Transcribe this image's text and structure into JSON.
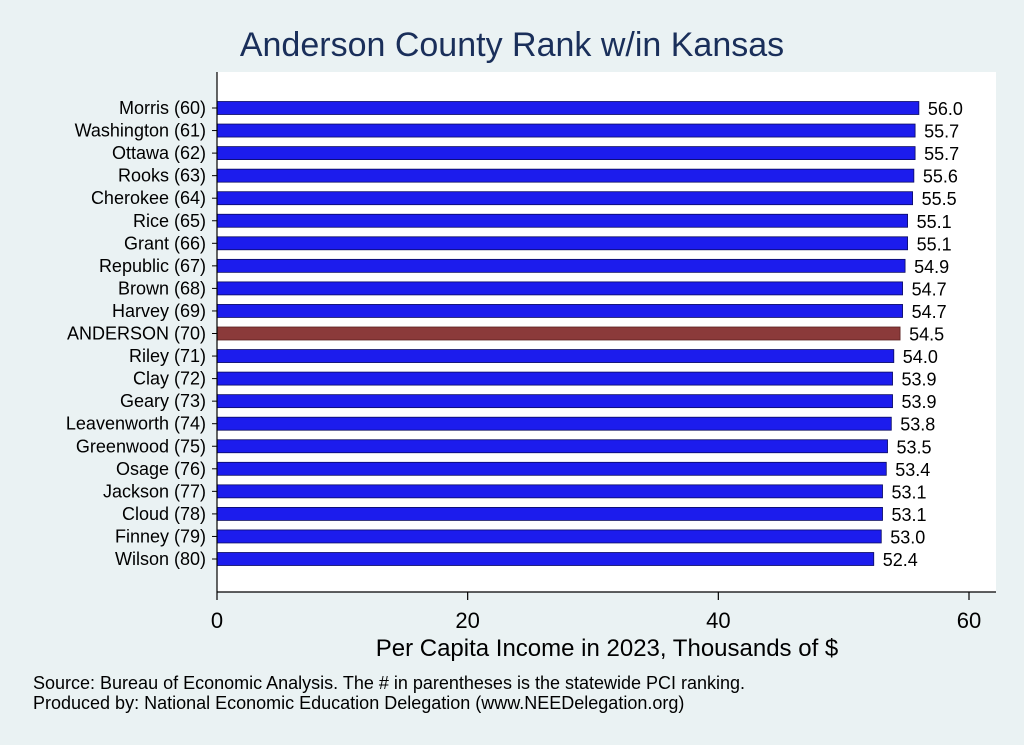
{
  "chart_data": {
    "type": "bar",
    "orientation": "horizontal",
    "title": "Anderson County Rank w/in Kansas",
    "xlabel": "Per Capita Income in 2023, Thousands of $",
    "ylabel": "",
    "xlim": [
      0,
      62
    ],
    "xticks": [
      0,
      20,
      40,
      60
    ],
    "grid": false,
    "categories": [
      "Morris (60)",
      "Washington (61)",
      "Ottawa (62)",
      "Rooks (63)",
      "Cherokee (64)",
      "Rice (65)",
      "Grant (66)",
      "Republic (67)",
      "Brown (68)",
      "Harvey (69)",
      "ANDERSON (70)",
      "Riley (71)",
      "Clay (72)",
      "Geary (73)",
      "Leavenworth (74)",
      "Greenwood (75)",
      "Osage (76)",
      "Jackson (77)",
      "Cloud (78)",
      "Finney (79)",
      "Wilson (80)"
    ],
    "values": [
      56.0,
      55.7,
      55.7,
      55.6,
      55.5,
      55.1,
      55.1,
      54.9,
      54.7,
      54.7,
      54.5,
      54.0,
      53.9,
      53.9,
      53.8,
      53.5,
      53.4,
      53.1,
      53.1,
      53.0,
      52.4
    ],
    "value_labels": [
      "56.0",
      "55.7",
      "55.7",
      "55.6",
      "55.5",
      "55.1",
      "55.1",
      "54.9",
      "54.7",
      "54.7",
      "54.5",
      "54.0",
      "53.9",
      "53.9",
      "53.8",
      "53.5",
      "53.4",
      "53.1",
      "53.1",
      "53.0",
      "52.4"
    ],
    "highlight": "ANDERSON (70)",
    "colors": {
      "bar": "#1c1ced",
      "highlight": "#8b3a3a",
      "bar_edge": "#0a0a60"
    }
  },
  "footnote": {
    "line1": "Source: Bureau of Economic Analysis. The # in parentheses is the statewide PCI ranking.",
    "line2": "Produced by: National Economic Education Delegation (www.NEEDelegation.org)"
  }
}
